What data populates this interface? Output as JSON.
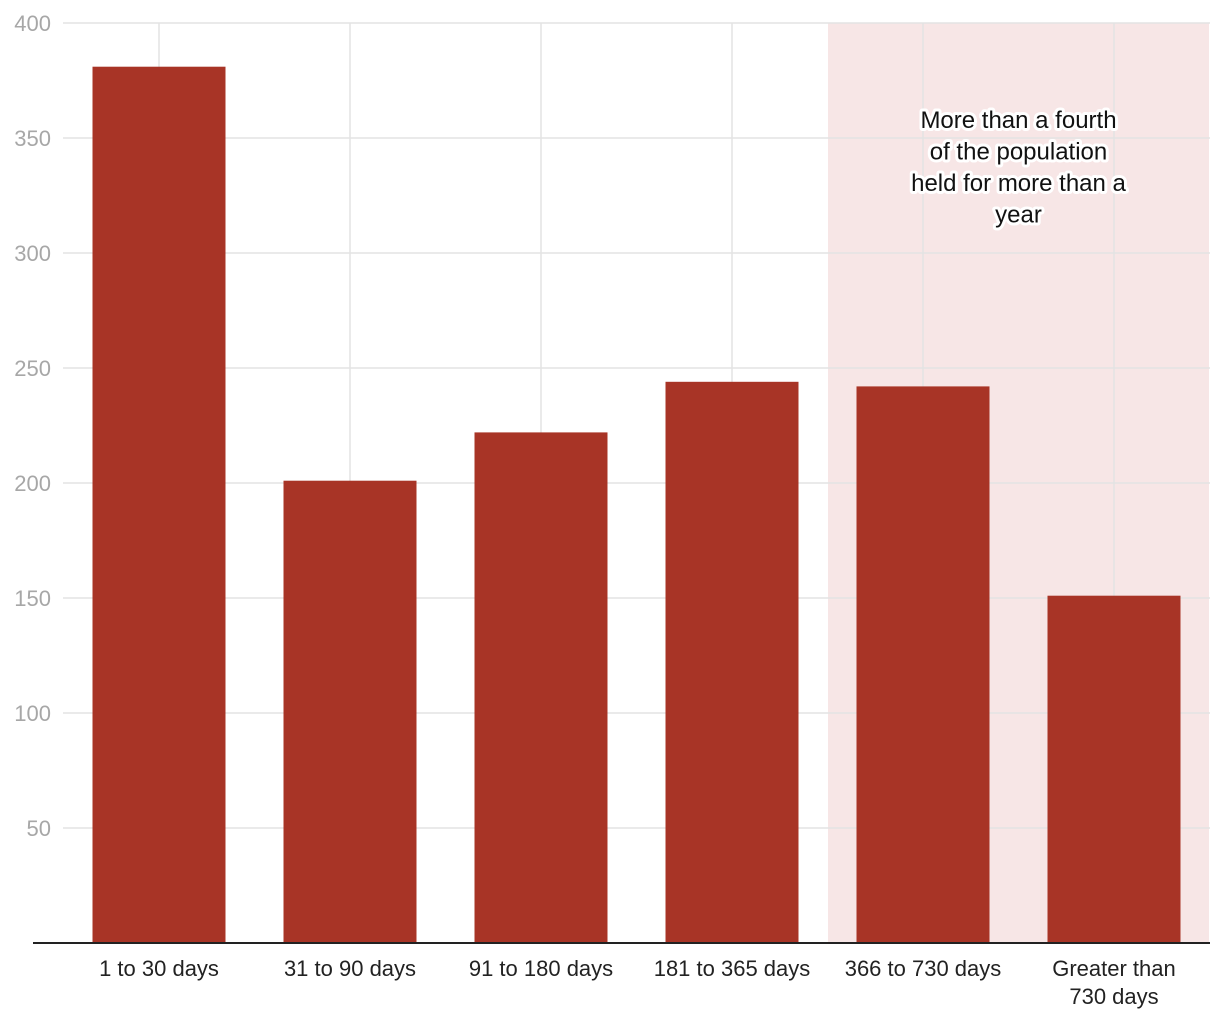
{
  "colors": {
    "bar": "#a83426",
    "highlight_band": "#f7e6e6",
    "grid": "#e3e3e3",
    "axis": "#222222",
    "tick_label": "#a7a7a7",
    "category_label": "#222222"
  },
  "chart_data": {
    "type": "bar",
    "title": "",
    "xlabel": "",
    "ylabel": "",
    "categories": [
      "1 to 30 days",
      "31 to 90 days",
      "91 to 180 days",
      "181 to 365 days",
      "366 to 730 days",
      "Greater than 730 days"
    ],
    "category_lines": [
      [
        "1 to 30 days"
      ],
      [
        "31 to 90 days"
      ],
      [
        "91 to 180 days"
      ],
      [
        "181 to 365 days"
      ],
      [
        "366 to 730 days"
      ],
      [
        "Greater than",
        "730 days"
      ]
    ],
    "values": [
      381,
      201,
      222,
      244,
      242,
      151
    ],
    "ylim": [
      0,
      400
    ],
    "yticks": [
      50,
      100,
      150,
      200,
      250,
      300,
      350,
      400
    ],
    "grid": true,
    "legend": "none",
    "highlight": {
      "from_category": "366 to 730 days",
      "to_category": "Greater than 730 days",
      "annotation_lines": [
        "More than a fourth",
        "of the population",
        "held for more than a",
        "year"
      ]
    }
  }
}
